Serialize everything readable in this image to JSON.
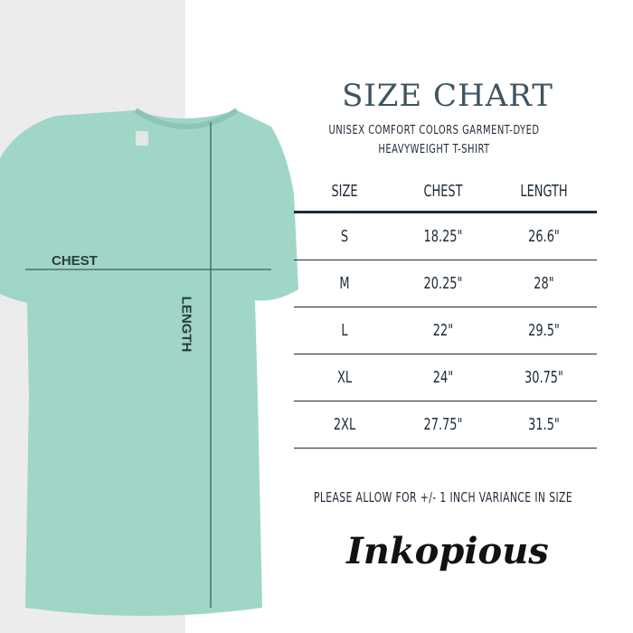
{
  "header": {
    "title": "SIZE CHART",
    "subtitle_line1": "UNISEX COMFORT COLORS GARMENT-DYED",
    "subtitle_line2": "HEAVYWEIGHT T-SHIRT"
  },
  "shirt": {
    "color": "#9fd6c7",
    "chest_label": "CHEST",
    "length_label": "LENGTH"
  },
  "table": {
    "columns": [
      "SIZE",
      "CHEST",
      "LENGTH"
    ],
    "rows": [
      {
        "size": "S",
        "chest": "18.25\"",
        "length": "26.6\""
      },
      {
        "size": "M",
        "chest": "20.25\"",
        "length": "28\""
      },
      {
        "size": "L",
        "chest": "22\"",
        "length": "29.5\""
      },
      {
        "size": "XL",
        "chest": "24\"",
        "length": "30.75\""
      },
      {
        "size": "2XL",
        "chest": "27.75\"",
        "length": "31.5\""
      }
    ]
  },
  "note": "PLEASE ALLOW FOR +/- 1 INCH VARIANCE IN SIZE",
  "brand": "Inkopious"
}
